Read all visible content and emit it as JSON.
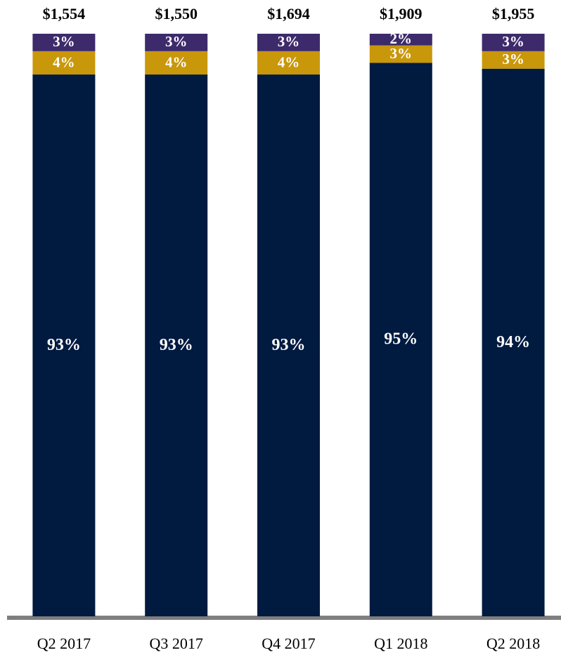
{
  "chart_data": {
    "type": "stacked_bar",
    "categories": [
      "Q2 2017",
      "Q3 2017",
      "Q4 2017",
      "Q1 2018",
      "Q2 2018"
    ],
    "series": [
      {
        "color": "#001a40",
        "values": [
          93,
          93,
          93,
          95,
          94
        ],
        "value_labels": [
          "93%",
          "93%",
          "93%",
          "95%",
          "94%"
        ]
      },
      {
        "color": "#c9970a",
        "values": [
          4,
          4,
          4,
          3,
          3
        ],
        "value_labels": [
          "4%",
          "4%",
          "4%",
          "3%",
          "3%"
        ]
      },
      {
        "color": "#3d2a6b",
        "values": [
          3,
          3,
          3,
          2,
          3
        ],
        "value_labels": [
          "3%",
          "3%",
          "3%",
          "2%",
          "3%"
        ]
      }
    ],
    "totals": {
      "values": [
        1554,
        1550,
        1694,
        1909,
        1955
      ],
      "value_labels": [
        "$1,554",
        "$1,550",
        "$1,694",
        "$1,909",
        "$1,955"
      ]
    },
    "ylim": [
      0,
      100
    ]
  }
}
